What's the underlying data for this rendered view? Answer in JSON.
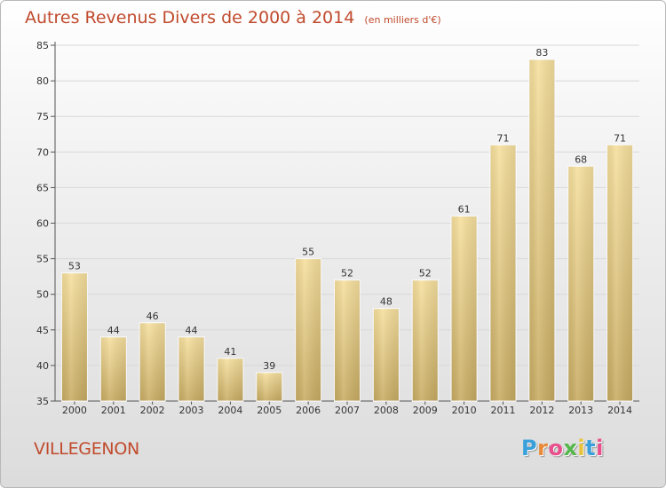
{
  "header": {
    "title": "Autres Revenus Divers de 2000 à 2014",
    "subtitle": "(en milliers d'€)"
  },
  "footer": {
    "place": "VILLEGENON",
    "logo_text": "Proxiti",
    "logo_letters": [
      "P",
      "r",
      "o",
      "x",
      "i",
      "t",
      "i"
    ],
    "logo_colors": [
      "#3aa0dc",
      "#e8893a",
      "#e84f8c",
      "#55b64a",
      "#e8c33a",
      "#3aa0dc",
      "#e84f8c"
    ]
  },
  "chart_data": {
    "type": "bar",
    "title": "Autres Revenus Divers de 2000 à 2014",
    "categories": [
      "2000",
      "2001",
      "2002",
      "2003",
      "2004",
      "2005",
      "2006",
      "2007",
      "2008",
      "2009",
      "2010",
      "2011",
      "2012",
      "2013",
      "2014"
    ],
    "values": [
      53,
      44,
      46,
      44,
      41,
      39,
      55,
      52,
      48,
      52,
      61,
      71,
      83,
      68,
      71
    ],
    "ylim": [
      35,
      85
    ],
    "yticks": [
      35,
      40,
      45,
      50,
      55,
      60,
      65,
      70,
      75,
      80,
      85
    ],
    "grid": true,
    "bar_color": "#ecd28f",
    "bar_color_dark": "#c9ab60"
  }
}
